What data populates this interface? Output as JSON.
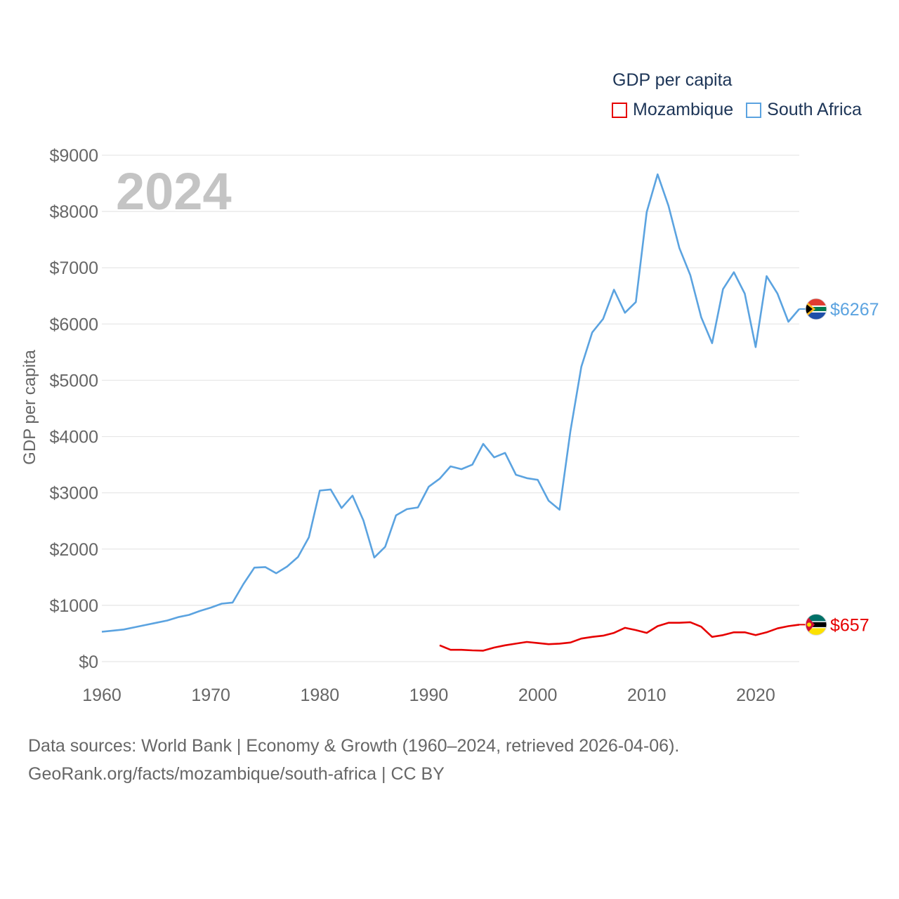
{
  "legend": {
    "title": "GDP per capita",
    "items": [
      {
        "label": "Mozambique",
        "color": "#e60000"
      },
      {
        "label": "South Africa",
        "color": "#5ba3e0"
      }
    ]
  },
  "watermark_year": "2024",
  "source": {
    "line1": "Data sources: World Bank | Economy & Growth (1960–2024, retrieved 2026-04-06).",
    "line2": "GeoRank.org/facts/mozambique/south-africa | CC BY"
  },
  "chart_data": {
    "type": "line",
    "title": "GDP per capita",
    "xlabel": "",
    "ylabel": "GDP per capita",
    "xlim": [
      1960,
      2024
    ],
    "ylim": [
      0,
      9000
    ],
    "x_ticks": [
      1960,
      1970,
      1980,
      1990,
      2000,
      2010,
      2020
    ],
    "y_ticks": [
      0,
      1000,
      2000,
      3000,
      4000,
      5000,
      6000,
      7000,
      8000,
      9000
    ],
    "y_tick_labels": [
      "$0",
      "$1000",
      "$2000",
      "$3000",
      "$4000",
      "$5000",
      "$6000",
      "$7000",
      "$8000",
      "$9000"
    ],
    "grid": true,
    "series": [
      {
        "name": "South Africa",
        "color": "#5ba3e0",
        "end_label": "$6267",
        "x": [
          1960,
          1961,
          1962,
          1963,
          1964,
          1965,
          1966,
          1967,
          1968,
          1969,
          1970,
          1971,
          1972,
          1973,
          1974,
          1975,
          1976,
          1977,
          1978,
          1979,
          1980,
          1981,
          1982,
          1983,
          1984,
          1985,
          1986,
          1987,
          1988,
          1989,
          1990,
          1991,
          1992,
          1993,
          1994,
          1995,
          1996,
          1997,
          1998,
          1999,
          2000,
          2001,
          2002,
          2003,
          2004,
          2005,
          2006,
          2007,
          2008,
          2009,
          2010,
          2011,
          2012,
          2013,
          2014,
          2015,
          2016,
          2017,
          2018,
          2019,
          2020,
          2021,
          2022,
          2023,
          2024
        ],
        "values": [
          530,
          550,
          570,
          610,
          650,
          690,
          730,
          790,
          830,
          900,
          960,
          1030,
          1050,
          1380,
          1670,
          1680,
          1570,
          1690,
          1860,
          2210,
          3040,
          3060,
          2730,
          2950,
          2510,
          1850,
          2040,
          2600,
          2710,
          2740,
          3110,
          3250,
          3470,
          3420,
          3500,
          3870,
          3630,
          3710,
          3320,
          3260,
          3230,
          2860,
          2700,
          4100,
          5240,
          5850,
          6090,
          6610,
          6200,
          6390,
          7990,
          8660,
          8100,
          7350,
          6870,
          6120,
          5660,
          6620,
          6920,
          6540,
          5590,
          6850,
          6540,
          6040,
          6267
        ]
      },
      {
        "name": "Mozambique",
        "color": "#e60000",
        "end_label": "$657",
        "x": [
          1991,
          1992,
          1993,
          1994,
          1995,
          1996,
          1997,
          1998,
          1999,
          2000,
          2001,
          2002,
          2003,
          2004,
          2005,
          2006,
          2007,
          2008,
          2009,
          2010,
          2011,
          2012,
          2013,
          2014,
          2015,
          2016,
          2017,
          2018,
          2019,
          2020,
          2021,
          2022,
          2023,
          2024
        ],
        "values": [
          290,
          210,
          210,
          200,
          195,
          250,
          290,
          320,
          350,
          330,
          310,
          320,
          340,
          410,
          440,
          460,
          510,
          600,
          560,
          510,
          630,
          690,
          690,
          700,
          620,
          440,
          470,
          520,
          520,
          470,
          520,
          590,
          630,
          657
        ]
      }
    ]
  }
}
